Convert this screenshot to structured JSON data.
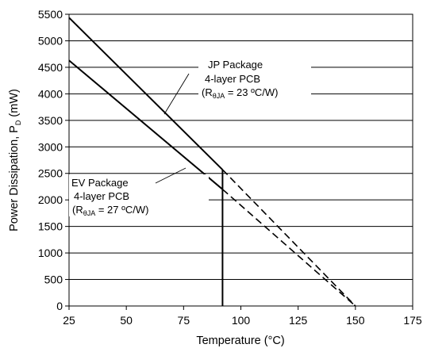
{
  "chart_data": {
    "type": "line",
    "xlabel": "Temperature (°C)",
    "ylabel": {
      "main": "Power Dissipation, P",
      "sub": "D",
      "unit": " (mW)"
    },
    "xlim": [
      25,
      175
    ],
    "ylim": [
      0,
      5500
    ],
    "xticks": [
      25,
      50,
      75,
      100,
      125,
      150,
      175
    ],
    "yticks": [
      0,
      500,
      1000,
      1500,
      2000,
      2500,
      3000,
      3500,
      4000,
      4500,
      5000,
      5500
    ],
    "grid": "horizontal",
    "vertical_marker_x": 92,
    "series": [
      {
        "name": "JP Package",
        "solid": [
          [
            25,
            5435
          ],
          [
            92,
            2570
          ]
        ],
        "dashed": [
          [
            92,
            2570
          ],
          [
            150,
            0
          ]
        ]
      },
      {
        "name": "EV Package",
        "solid": [
          [
            25,
            4630
          ],
          [
            92,
            2200
          ]
        ],
        "dashed": [
          [
            92,
            2200
          ],
          [
            150,
            0
          ]
        ]
      }
    ],
    "annotations": [
      {
        "series": "JP Package",
        "line1": "JP Package",
        "line2": "4-layer PCB",
        "rtheta_prefix": "(R",
        "rtheta_sub": "θJA",
        "rtheta_suffix": " = 23 ºC/W)"
      },
      {
        "series": "EV Package",
        "line1": "EV Package",
        "line2": "4-layer PCB",
        "rtheta_prefix": "(R",
        "rtheta_sub": "θJA",
        "rtheta_suffix": " = 27 ºC/W)"
      }
    ]
  }
}
